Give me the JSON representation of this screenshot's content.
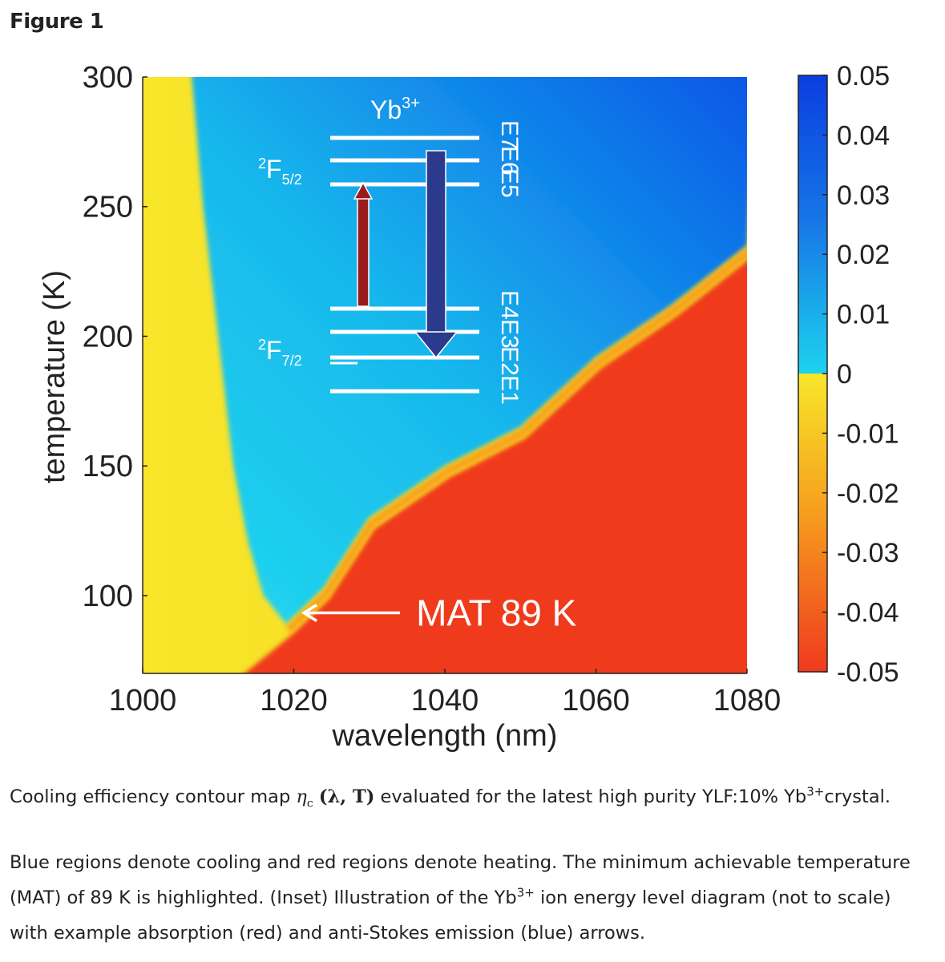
{
  "heading": "Figure 1",
  "chart_data": {
    "type": "heatmap",
    "xlabel": "wavelength (nm)",
    "ylabel": "temperature (K)",
    "xlim": [
      1000,
      1080
    ],
    "ylim": [
      70,
      300
    ],
    "xticks": [
      1000,
      1020,
      1040,
      1060,
      1080
    ],
    "yticks": [
      100,
      150,
      200,
      250,
      300
    ],
    "colorbar": {
      "range": [
        -0.05,
        0.05
      ],
      "ticks": [
        "0.05",
        "0.04",
        "0.03",
        "0.02",
        "0.01",
        "0",
        "-0.01",
        "-0.02",
        "-0.03",
        "-0.04",
        "-0.05"
      ]
    },
    "colors": {
      "cooling_low": "#22d8ee",
      "cooling_high": "#0a55e6",
      "heating_low": "#f8e62a",
      "heating_high": "#ef3a1e"
    },
    "zero_boundary_left": [
      {
        "wavelength": 1006.5,
        "temperature": 300
      },
      {
        "wavelength": 1008,
        "temperature": 250
      },
      {
        "wavelength": 1010,
        "temperature": 200
      },
      {
        "wavelength": 1012,
        "temperature": 150
      },
      {
        "wavelength": 1014,
        "temperature": 120
      },
      {
        "wavelength": 1016,
        "temperature": 100
      },
      {
        "wavelength": 1019,
        "temperature": 89
      }
    ],
    "zero_boundary_right": [
      {
        "wavelength": 1019,
        "temperature": 89
      },
      {
        "wavelength": 1024,
        "temperature": 103
      },
      {
        "wavelength": 1030,
        "temperature": 130
      },
      {
        "wavelength": 1040,
        "temperature": 150
      },
      {
        "wavelength": 1050,
        "temperature": 165
      },
      {
        "wavelength": 1060,
        "temperature": 192
      },
      {
        "wavelength": 1070,
        "temperature": 212
      },
      {
        "wavelength": 1080,
        "temperature": 235
      }
    ],
    "annotation": {
      "text": "MAT 89 K",
      "point": {
        "wavelength": 1019,
        "temperature": 89
      }
    },
    "inset": {
      "ion": "Yb",
      "ion_charge": "3+",
      "upper_manifold": {
        "base": "2",
        "symbol": "F",
        "sub": "5/2"
      },
      "lower_manifold": {
        "base": "2",
        "symbol": "F",
        "sub": "7/2"
      },
      "levels": [
        "E7",
        "E6",
        "E5",
        "E4",
        "E3",
        "E2",
        "E1"
      ],
      "absorption_color": "#9a1b1b",
      "emission_color": "#2b3a8c"
    }
  },
  "caption": {
    "line1_pre": "Cooling efficiency contour map ",
    "eta": "η",
    "eta_sub": "c",
    "args": "(λ,  T)",
    "line1_post": " evaluated for the latest high purity YLF:10% Yb",
    "line1_sup": "3+",
    "line1_end": "crystal.",
    "para2_a": "Blue regions denote cooling and red regions denote heating. The minimum achievable temperature (MAT) of 89 K is highlighted. (Inset) Illustration of the Yb",
    "para2_sup": "3+",
    "para2_b": " ion energy level diagram (not to scale) with example absorption (red) and anti-Stokes emission (blue) arrows."
  }
}
